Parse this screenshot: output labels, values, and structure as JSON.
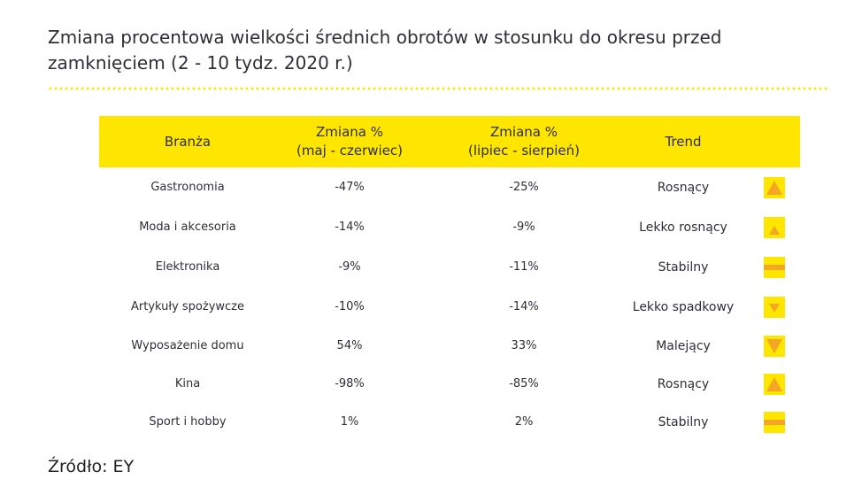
{
  "title_line1": "Zmiana procentowa wielkości średnich obrotów w stosunku do okresu przed",
  "title_line2": "zamknięciem (2 - 10 tydz. 2020 r.)",
  "colors": {
    "accent": "#ffe600",
    "arrow": "#f5a623",
    "text": "#2e2e38"
  },
  "table": {
    "headers": {
      "branza": "Branża",
      "maj_line1": "Zmiana %",
      "maj_line2": "(maj - czerwiec)",
      "lip_line1": "Zmiana %",
      "lip_line2": "(lipiec - sierpień)",
      "trend": "Trend"
    },
    "rows": [
      {
        "branza": "Gastronomia",
        "maj": "-47%",
        "lip": "-25%",
        "trend": "Rosnący",
        "icon": "arrow-up-icon"
      },
      {
        "branza": "Moda i akcesoria",
        "maj": "-14%",
        "lip": "-9%",
        "trend": "Lekko rosnący",
        "icon": "small-arrow-up-icon"
      },
      {
        "branza": "Elektronika",
        "maj": "-9%",
        "lip": "-11%",
        "trend": "Stabilny",
        "icon": "stable-bar-icon"
      },
      {
        "branza": "Artykuły spożywcze",
        "maj": "-10%",
        "lip": "-14%",
        "trend": "Lekko spadkowy",
        "icon": "small-arrow-down-icon"
      },
      {
        "branza": "Wyposażenie domu",
        "maj": "54%",
        "lip": "33%",
        "trend": "Malejący",
        "icon": "arrow-down-icon"
      },
      {
        "branza": "Kina",
        "maj": "-98%",
        "lip": "-85%",
        "trend": "Rosnący",
        "icon": "arrow-up-icon"
      },
      {
        "branza": "Sport i hobby",
        "maj": "1%",
        "lip": "2%",
        "trend": "Stabilny",
        "icon": "stable-bar-icon"
      }
    ]
  },
  "source": "Źródło: EY"
}
